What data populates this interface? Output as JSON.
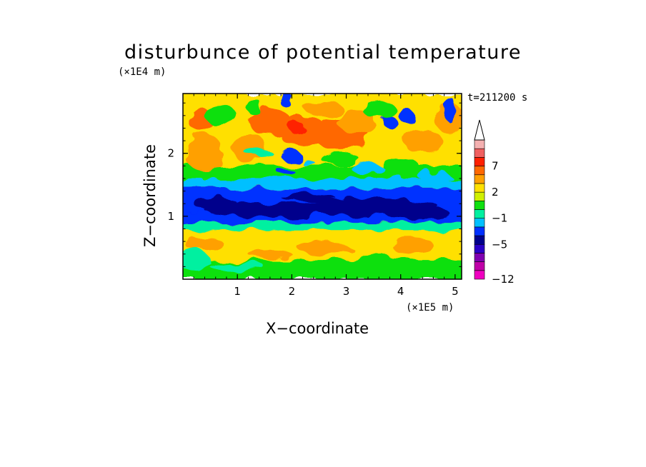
{
  "chart_data": {
    "type": "heatmap",
    "title": "disturbunce of potential temperature",
    "xlabel": "X−coordinate",
    "ylabel": "Z−coordinate",
    "x_unit": "(×1E5 m)",
    "z_unit": "(×1E4 m)",
    "time_label": "t=211200 s",
    "xlim": [
      0,
      5.12
    ],
    "ylim": [
      0,
      2.95
    ],
    "x_ticks": [
      {
        "value": 1,
        "label": "1"
      },
      {
        "value": 2,
        "label": "2"
      },
      {
        "value": 3,
        "label": "3"
      },
      {
        "value": 4,
        "label": "4"
      },
      {
        "value": 5,
        "label": "5"
      }
    ],
    "y_ticks": [
      {
        "value": 1,
        "label": "1"
      },
      {
        "value": 2,
        "label": "2"
      }
    ],
    "colorbar": {
      "levels": [
        -12,
        -10,
        -8,
        -7,
        -5,
        -3,
        -2,
        -1,
        0,
        1,
        2,
        4,
        5,
        7,
        9,
        11
      ],
      "colors": [
        "#f000c0",
        "#c000a8",
        "#8000b0",
        "#2a00c8",
        "#00008c",
        "#0030ff",
        "#00c0ff",
        "#00f0a0",
        "#10e010",
        "#d0f000",
        "#ffe000",
        "#ffa000",
        "#ff6800",
        "#ff2000",
        "#f06060",
        "#f4b0b0"
      ],
      "extend_top": true,
      "labels": [
        {
          "value": 7,
          "label": "7"
        },
        {
          "value": 2,
          "label": "2"
        },
        {
          "value": -1,
          "label": "−1"
        },
        {
          "value": -5,
          "label": "−5"
        },
        {
          "value": -12,
          "label": "−12"
        }
      ]
    },
    "bands": [
      {
        "z": [
          0.0,
          0.3
        ],
        "level": "green-yellow"
      },
      {
        "z": [
          0.3,
          0.8
        ],
        "level": "yellow-orange"
      },
      {
        "z": [
          0.8,
          1.45
        ],
        "level": "blue-navy"
      },
      {
        "z": [
          1.45,
          1.75
        ],
        "level": "cyan-green"
      },
      {
        "z": [
          1.75,
          2.95
        ],
        "level": "orange-yellow-red"
      }
    ]
  }
}
